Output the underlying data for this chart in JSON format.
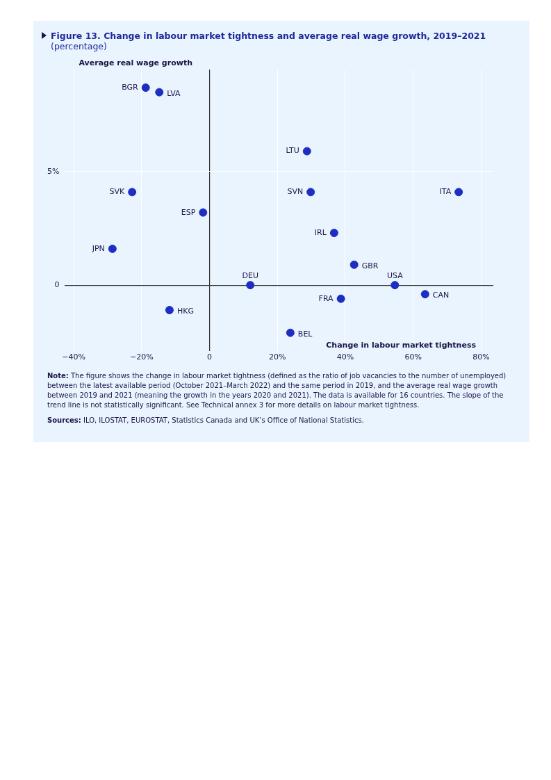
{
  "chart_data": {
    "type": "scatter",
    "title": "Figure 13.  Change in labour market tightness and average real wage growth, 2019–2021",
    "subtitle": "(percentage)",
    "xlabel": "Change in labour market tightness",
    "ylabel": "Average real wage growth",
    "x": [
      -18.8,
      -14.8,
      28.7,
      -22.8,
      29.8,
      73.4,
      -1.9,
      36.7,
      -28.6,
      42.6,
      12.0,
      54.6,
      63.5,
      38.7,
      -11.8,
      23.8
    ],
    "values": [
      8.7,
      8.5,
      5.9,
      4.1,
      4.1,
      4.1,
      3.2,
      2.3,
      1.6,
      0.9,
      0,
      0,
      -0.4,
      -0.6,
      -1.1,
      -2.1
    ],
    "color": "#1f2ec2",
    "marker": "circle",
    "xlim": [
      -42.6,
      83.6
    ],
    "xticks": [
      {
        "value": -40,
        "label": "−40%"
      },
      {
        "value": -20,
        "label": "−20%"
      },
      0,
      {
        "value": 20,
        "label": "20%"
      },
      {
        "value": 40,
        "label": "40%"
      },
      {
        "value": 60,
        "label": "60%"
      },
      {
        "value": 80,
        "label": "80%"
      }
    ],
    "ylim": [
      -2.9,
      9.5
    ],
    "yticks": [
      0,
      {
        "value": 5,
        "label": "5%"
      }
    ],
    "grid": true,
    "annotations": [
      {
        "text": "BGR",
        "x": -18.8,
        "y": 8.7
      },
      {
        "text": "LVA",
        "x": -14.8,
        "y": 8.5
      },
      {
        "text": "LTU",
        "x": 28.7,
        "y": 5.9
      },
      {
        "text": "SVK",
        "x": -22.8,
        "y": 4.1
      },
      {
        "text": "SVN",
        "x": 29.8,
        "y": 4.1
      },
      {
        "text": "ITA",
        "x": 73.4,
        "y": 4.1
      },
      {
        "text": "ESP",
        "x": -1.9,
        "y": 3.2
      },
      {
        "text": "IRL",
        "x": 36.7,
        "y": 2.3
      },
      {
        "text": "JPN",
        "x": -28.6,
        "y": 1.6
      },
      {
        "text": "GBR",
        "x": 42.6,
        "y": 0.9
      },
      {
        "text": "DEU",
        "x": 12.0,
        "y": 0
      },
      {
        "text": "USA",
        "x": 54.6,
        "y": 0
      },
      {
        "text": "CAN",
        "x": 63.5,
        "y": -0.4
      },
      {
        "text": "FRA",
        "x": 38.7,
        "y": -0.6
      },
      {
        "text": "HKG",
        "x": -11.8,
        "y": -1.1
      },
      {
        "text": "BEL",
        "x": 23.8,
        "y": -2.1
      },
      "Note: The figure shows the change in labour market tightness (defined as the ratio of job vacancies to the number of unemployed) between the latest available period (October 2021–March 2022) and the same period in 2019, and the average real wage growth between 2019 and 2021 (meaning the growth in the years 2020 and 2021). The data is available for 16 countries. The slope of the trend line is not statistically significant. See Technical annex 3 for more details on labour market tightness.",
      "Sources: ILO, ILOSTAT, EUROSTAT, Statistics Canada and UK’s Office of National Statistics."
    ]
  }
}
